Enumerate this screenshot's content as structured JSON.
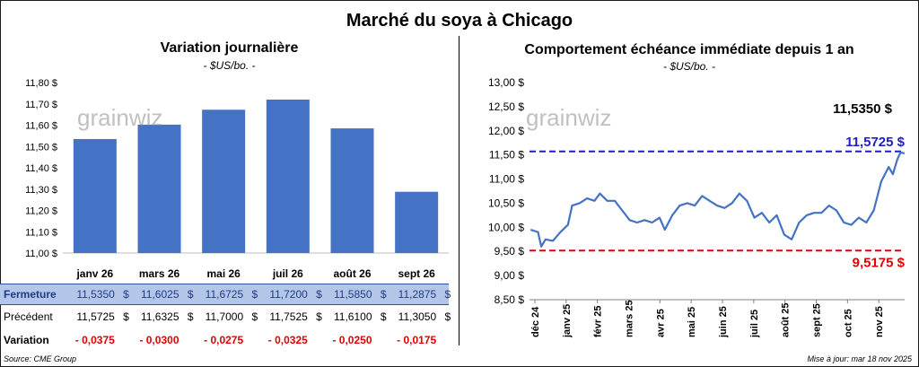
{
  "title": "Marché du soya à Chicago",
  "left_chart": {
    "title": "Variation journalière",
    "unit": "- $US/bo. -",
    "watermark": "grainwiz"
  },
  "right_chart": {
    "title": "Comportement  échéance immédiate depuis 1 an",
    "unit": "- $US/bo. -",
    "watermark": "grainwiz",
    "annotations": {
      "last": "11,5350 $",
      "high_line": "11,5725 $",
      "low_line": "9,5175 $"
    }
  },
  "table": {
    "rows": [
      {
        "label": "Fermeture",
        "values": [
          "11,5350",
          "11,6025",
          "11,6725",
          "11,7200",
          "11,5850",
          "11,2875"
        ],
        "unit": "$"
      },
      {
        "label": "Précédent",
        "values": [
          "11,5725",
          "11,6325",
          "11,7000",
          "11,7525",
          "11,6100",
          "11,3050"
        ],
        "unit": "$"
      },
      {
        "label": "Variation",
        "values": [
          "- 0,0375",
          "- 0,0300",
          "- 0,0275",
          "- 0,0325",
          "- 0,0250",
          "- 0,0175"
        ]
      }
    ]
  },
  "footer": {
    "source": "Source: CME Group",
    "updated": "Mise à jour: mar 18 nov 2025"
  },
  "colors": {
    "bar": "#4472c4",
    "line": "#4472c4",
    "high_line": "#1f1fbf",
    "low_line": "#e00000",
    "negative": "#e00000"
  },
  "chart_data": [
    {
      "type": "bar",
      "categories": [
        "janv 26",
        "mars 26",
        "mai 26",
        "juil 26",
        "août 26",
        "sept 26"
      ],
      "values": [
        11.535,
        11.6025,
        11.6725,
        11.72,
        11.585,
        11.2875
      ],
      "ylim": [
        11.0,
        11.8
      ],
      "yticks": [
        "11,00 $",
        "11,10 $",
        "11,20 $",
        "11,30 $",
        "11,40 $",
        "11,50 $",
        "11,60 $",
        "11,70 $",
        "11,80 $"
      ],
      "grid": false
    },
    {
      "type": "line",
      "x_labels": [
        "déc 24",
        "janv 25",
        "févr 25",
        "mars 25",
        "avr 25",
        "mai 25",
        "juin 25",
        "juil 25",
        "août 25",
        "sept 25",
        "oct 25",
        "nov 25"
      ],
      "x_start": "2024-12-01",
      "x_end": "2025-11-18",
      "series": [
        {
          "points": [
            [
              "2024-12-02",
              9.95
            ],
            [
              "2024-12-09",
              9.9
            ],
            [
              "2024-12-12",
              9.6
            ],
            [
              "2024-12-16",
              9.75
            ],
            [
              "2024-12-23",
              9.72
            ],
            [
              "2024-12-30",
              9.9
            ],
            [
              "2025-01-06",
              10.05
            ],
            [
              "2025-01-10",
              10.45
            ],
            [
              "2025-01-17",
              10.5
            ],
            [
              "2025-01-24",
              10.6
            ],
            [
              "2025-01-31",
              10.55
            ],
            [
              "2025-02-05",
              10.7
            ],
            [
              "2025-02-12",
              10.55
            ],
            [
              "2025-02-19",
              10.55
            ],
            [
              "2025-02-26",
              10.35
            ],
            [
              "2025-03-05",
              10.15
            ],
            [
              "2025-03-12",
              10.1
            ],
            [
              "2025-03-19",
              10.15
            ],
            [
              "2025-03-26",
              10.1
            ],
            [
              "2025-04-02",
              10.2
            ],
            [
              "2025-04-07",
              9.95
            ],
            [
              "2025-04-14",
              10.25
            ],
            [
              "2025-04-21",
              10.45
            ],
            [
              "2025-04-28",
              10.5
            ],
            [
              "2025-05-05",
              10.45
            ],
            [
              "2025-05-12",
              10.65
            ],
            [
              "2025-05-19",
              10.55
            ],
            [
              "2025-05-26",
              10.45
            ],
            [
              "2025-06-02",
              10.4
            ],
            [
              "2025-06-09",
              10.5
            ],
            [
              "2025-06-16",
              10.7
            ],
            [
              "2025-06-23",
              10.55
            ],
            [
              "2025-06-30",
              10.2
            ],
            [
              "2025-07-07",
              10.3
            ],
            [
              "2025-07-14",
              10.1
            ],
            [
              "2025-07-21",
              10.25
            ],
            [
              "2025-07-28",
              9.85
            ],
            [
              "2025-08-04",
              9.75
            ],
            [
              "2025-08-11",
              10.1
            ],
            [
              "2025-08-18",
              10.25
            ],
            [
              "2025-08-25",
              10.3
            ],
            [
              "2025-09-01",
              10.3
            ],
            [
              "2025-09-08",
              10.45
            ],
            [
              "2025-09-15",
              10.35
            ],
            [
              "2025-09-22",
              10.1
            ],
            [
              "2025-09-29",
              10.05
            ],
            [
              "2025-10-06",
              10.2
            ],
            [
              "2025-10-13",
              10.1
            ],
            [
              "2025-10-20",
              10.35
            ],
            [
              "2025-10-27",
              10.95
            ],
            [
              "2025-11-03",
              11.25
            ],
            [
              "2025-11-07",
              11.1
            ],
            [
              "2025-11-11",
              11.4
            ],
            [
              "2025-11-14",
              11.55
            ],
            [
              "2025-11-18",
              11.535
            ]
          ]
        }
      ],
      "ylim": [
        8.5,
        13.0
      ],
      "yticks": [
        "8,50 $",
        "9,00 $",
        "9,50 $",
        "10,00 $",
        "10,50 $",
        "11,00 $",
        "11,50 $",
        "12,00 $",
        "12,50 $",
        "13,00 $"
      ],
      "hlines": [
        11.5725,
        9.5175
      ],
      "grid": false
    }
  ]
}
